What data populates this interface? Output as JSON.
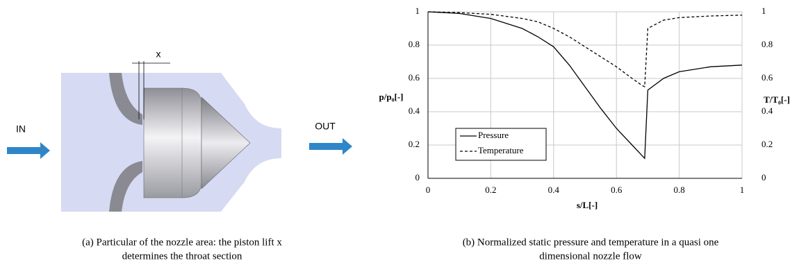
{
  "diagram": {
    "label_in": "IN",
    "label_out": "OUT",
    "label_lift": "x",
    "caption": [
      "(a) Particular of the nozzle area: the piston lift x",
      "determines the throat section"
    ]
  },
  "chart_data": {
    "type": "line",
    "caption": [
      "(b) Normalized static pressure and temperature in a quasi one",
      "dimensional nozzle flow"
    ],
    "x_label": "s/L[-]",
    "y_label": "p/p₀[-]",
    "y2_label": "T/T₀[-]",
    "x": [
      0,
      0.1,
      0.2,
      0.3,
      0.35,
      0.4,
      0.45,
      0.5,
      0.55,
      0.6,
      0.65,
      0.68,
      0.69,
      0.7,
      0.75,
      0.8,
      0.9,
      1
    ],
    "series": [
      {
        "name": "Pressure",
        "color": "#000000",
        "dash": false,
        "values": [
          1,
          0.99,
          0.96,
          0.9,
          0.85,
          0.79,
          0.68,
          0.55,
          0.42,
          0.3,
          0.2,
          0.14,
          0.12,
          0.53,
          0.6,
          0.64,
          0.67,
          0.68
        ]
      },
      {
        "name": "Temperature",
        "color": "#000000",
        "dash": true,
        "axis": "y2",
        "values": [
          1,
          0.995,
          0.985,
          0.96,
          0.94,
          0.9,
          0.85,
          0.79,
          0.73,
          0.67,
          0.6,
          0.56,
          0.55,
          0.9,
          0.95,
          0.965,
          0.975,
          0.98
        ]
      }
    ],
    "xlim": [
      0,
      1
    ],
    "xticks": [
      0,
      0.2,
      0.4,
      0.6,
      0.8,
      1
    ],
    "ylim": [
      0,
      1
    ],
    "yticks": [
      0,
      0.2,
      0.4,
      0.6,
      0.8,
      1
    ],
    "y2lim": [
      0,
      1
    ],
    "y2ticks": [
      0,
      0.2,
      0.4,
      0.6,
      0.8,
      1
    ],
    "grid": true,
    "legend": "lower-left"
  }
}
